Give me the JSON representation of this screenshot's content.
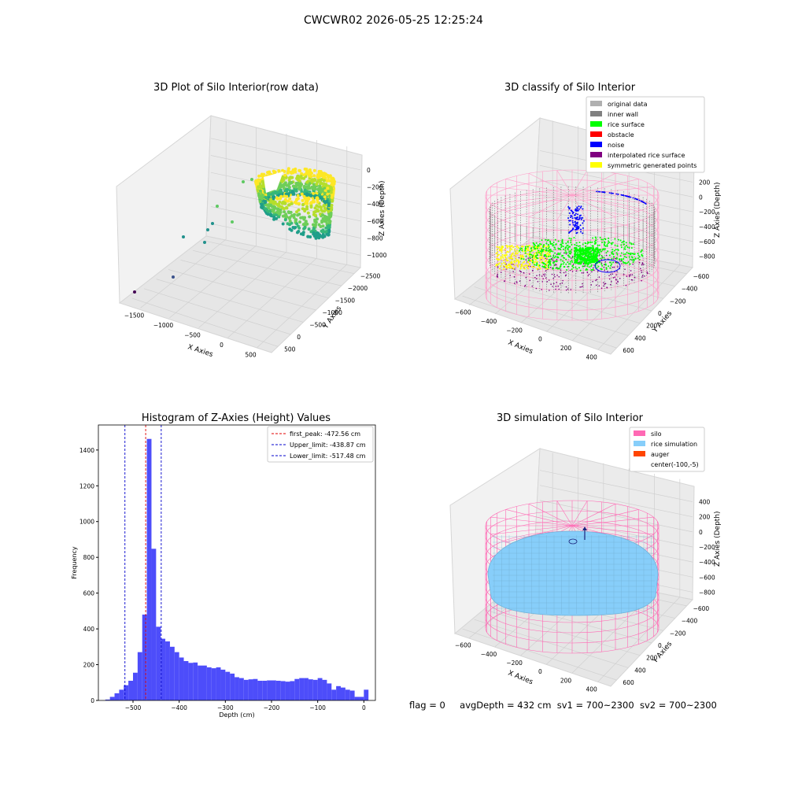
{
  "figure_title": "CWCWR02 2026-05-25 12:25:24",
  "status": {
    "flag": "flag = 0",
    "avg_depth": "avgDepth = 432 cm",
    "sv1": "sv1 = 700~2300",
    "sv2": "sv2 = 700~2300"
  },
  "colors": {
    "histogram_bar": "#4d4dfa",
    "first_peak": "#e00000",
    "limit_lines": "#0000cc",
    "silo_wire": "#ff69b4",
    "rice_simulation": "#87cefa",
    "auger": "#ff4500",
    "inner_wall": "#808080",
    "rice_surface": "#00ff00",
    "noise": "#0000ff",
    "obstacle": "#ff0000",
    "interpolated": "#800080",
    "symmetric": "#ffff00",
    "original": "#b0b0b0"
  },
  "chart_data": [
    {
      "type": "scatter",
      "title": "3D Plot of Silo Interior(row data)",
      "xlabel": "X Axies",
      "ylabel": "Y Axies",
      "zlabel": "Z Axies (Depth)",
      "x_ticks": [
        "−1500",
        "−1000",
        "−500",
        "0",
        "500"
      ],
      "y_ticks": [
        "500",
        "0",
        "−500",
        "−1000",
        "−1500",
        "−2000",
        "−2500"
      ],
      "z_ticks": [
        "0",
        "−200",
        "−400",
        "−600",
        "−800",
        "−1000"
      ],
      "colormap": "viridis"
    },
    {
      "type": "scatter",
      "title": "3D classify of Silo Interior",
      "xlabel": "X Axies",
      "ylabel": "Y Axies",
      "zlabel": "Z Axies (Depth)",
      "x_ticks": [
        "−600",
        "−400",
        "−200",
        "0",
        "200",
        "400"
      ],
      "y_ticks": [
        "600",
        "400",
        "200",
        "0",
        "−200",
        "−400",
        "−600"
      ],
      "z_ticks": [
        "200",
        "0",
        "−200",
        "−400",
        "−600",
        "−800"
      ],
      "legend": [
        {
          "label": "original data",
          "color": "#b0b0b0"
        },
        {
          "label": "inner wall",
          "color": "#808080"
        },
        {
          "label": "rice surface",
          "color": "#00ff00"
        },
        {
          "label": "obstacle",
          "color": "#ff0000"
        },
        {
          "label": "noise",
          "color": "#0000ff"
        },
        {
          "label": "interpolated rice surface",
          "color": "#800080"
        },
        {
          "label": "symmetric generated points",
          "color": "#ffff00"
        }
      ],
      "legend_position": "top-right"
    },
    {
      "type": "bar",
      "title": "Histogram of Z-Axies (Height) Values",
      "xlabel": "Depth (cm)",
      "ylabel": "Frequency",
      "xlim": [
        -575,
        25
      ],
      "ylim": [
        0,
        1540
      ],
      "x_ticks": [
        -500,
        -400,
        -300,
        -200,
        -100,
        0
      ],
      "y_ticks": [
        0,
        200,
        400,
        600,
        800,
        1000,
        1200,
        1400
      ],
      "bin_edges_start": -560,
      "bin_width": 10,
      "values": [
        5,
        20,
        40,
        60,
        85,
        110,
        155,
        270,
        480,
        1462,
        848,
        412,
        345,
        330,
        300,
        270,
        240,
        220,
        210,
        212,
        195,
        195,
        185,
        180,
        185,
        172,
        160,
        150,
        130,
        125,
        115,
        118,
        120,
        110,
        110,
        112,
        112,
        110,
        108,
        105,
        108,
        120,
        125,
        125,
        118,
        115,
        125,
        115,
        95,
        60,
        80,
        72,
        60,
        55,
        20,
        20,
        60
      ],
      "reference_lines": [
        {
          "label": "first_peak: -472.56 cm",
          "x": -472.56,
          "color": "#e00000"
        },
        {
          "label": "Upper_limit: -438.87 cm",
          "x": -438.87,
          "color": "#0000cc"
        },
        {
          "label": "Lower_limit: -517.48 cm",
          "x": -517.48,
          "color": "#0000cc"
        }
      ],
      "legend_position": "top-right"
    },
    {
      "type": "scatter",
      "title": "3D simulation of Silo Interior",
      "xlabel": "X Axies",
      "ylabel": "Y Axies",
      "zlabel": "Z Axies (Depth)",
      "x_ticks": [
        "−600",
        "−400",
        "−200",
        "0",
        "200",
        "400"
      ],
      "y_ticks": [
        "600",
        "400",
        "200",
        "0",
        "−200",
        "−400",
        "−600"
      ],
      "z_ticks": [
        "400",
        "200",
        "0",
        "−200",
        "−400",
        "−600",
        "−800"
      ],
      "legend": [
        {
          "label": "silo",
          "color": "#ff69b4"
        },
        {
          "label": "rice simulation",
          "color": "#87cefa"
        },
        {
          "label": "auger",
          "color": "#ff4500"
        },
        {
          "label": "center(-100,-5)",
          "color": ""
        }
      ],
      "legend_position": "top-right"
    }
  ]
}
